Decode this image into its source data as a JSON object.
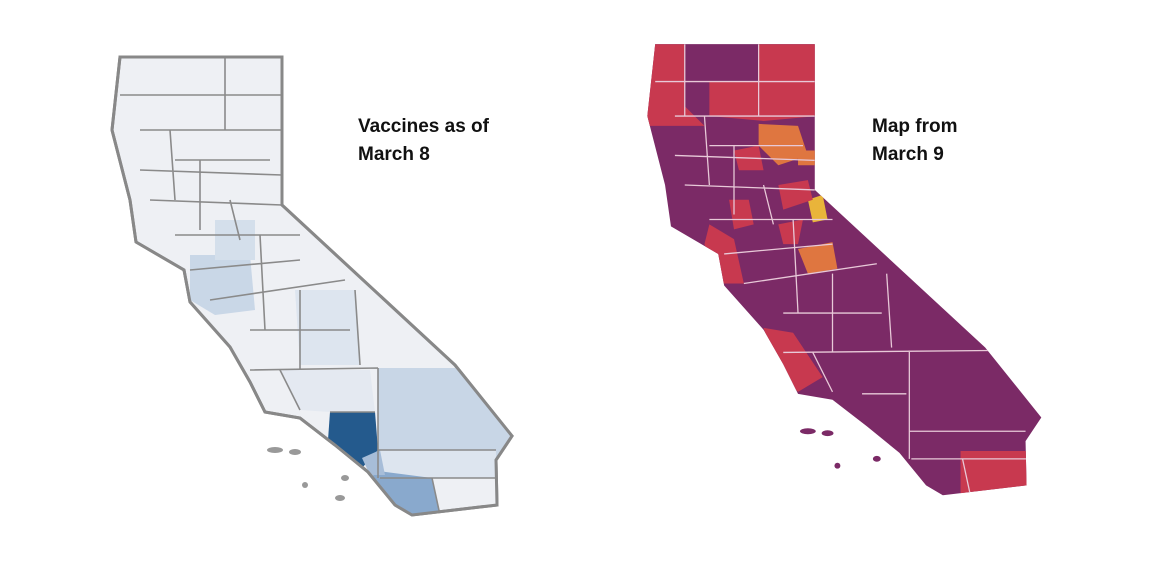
{
  "maps": [
    {
      "caption": [
        "Vaccines as of",
        "March 8"
      ]
    },
    {
      "caption": [
        "Map from",
        "March 9"
      ]
    }
  ]
}
